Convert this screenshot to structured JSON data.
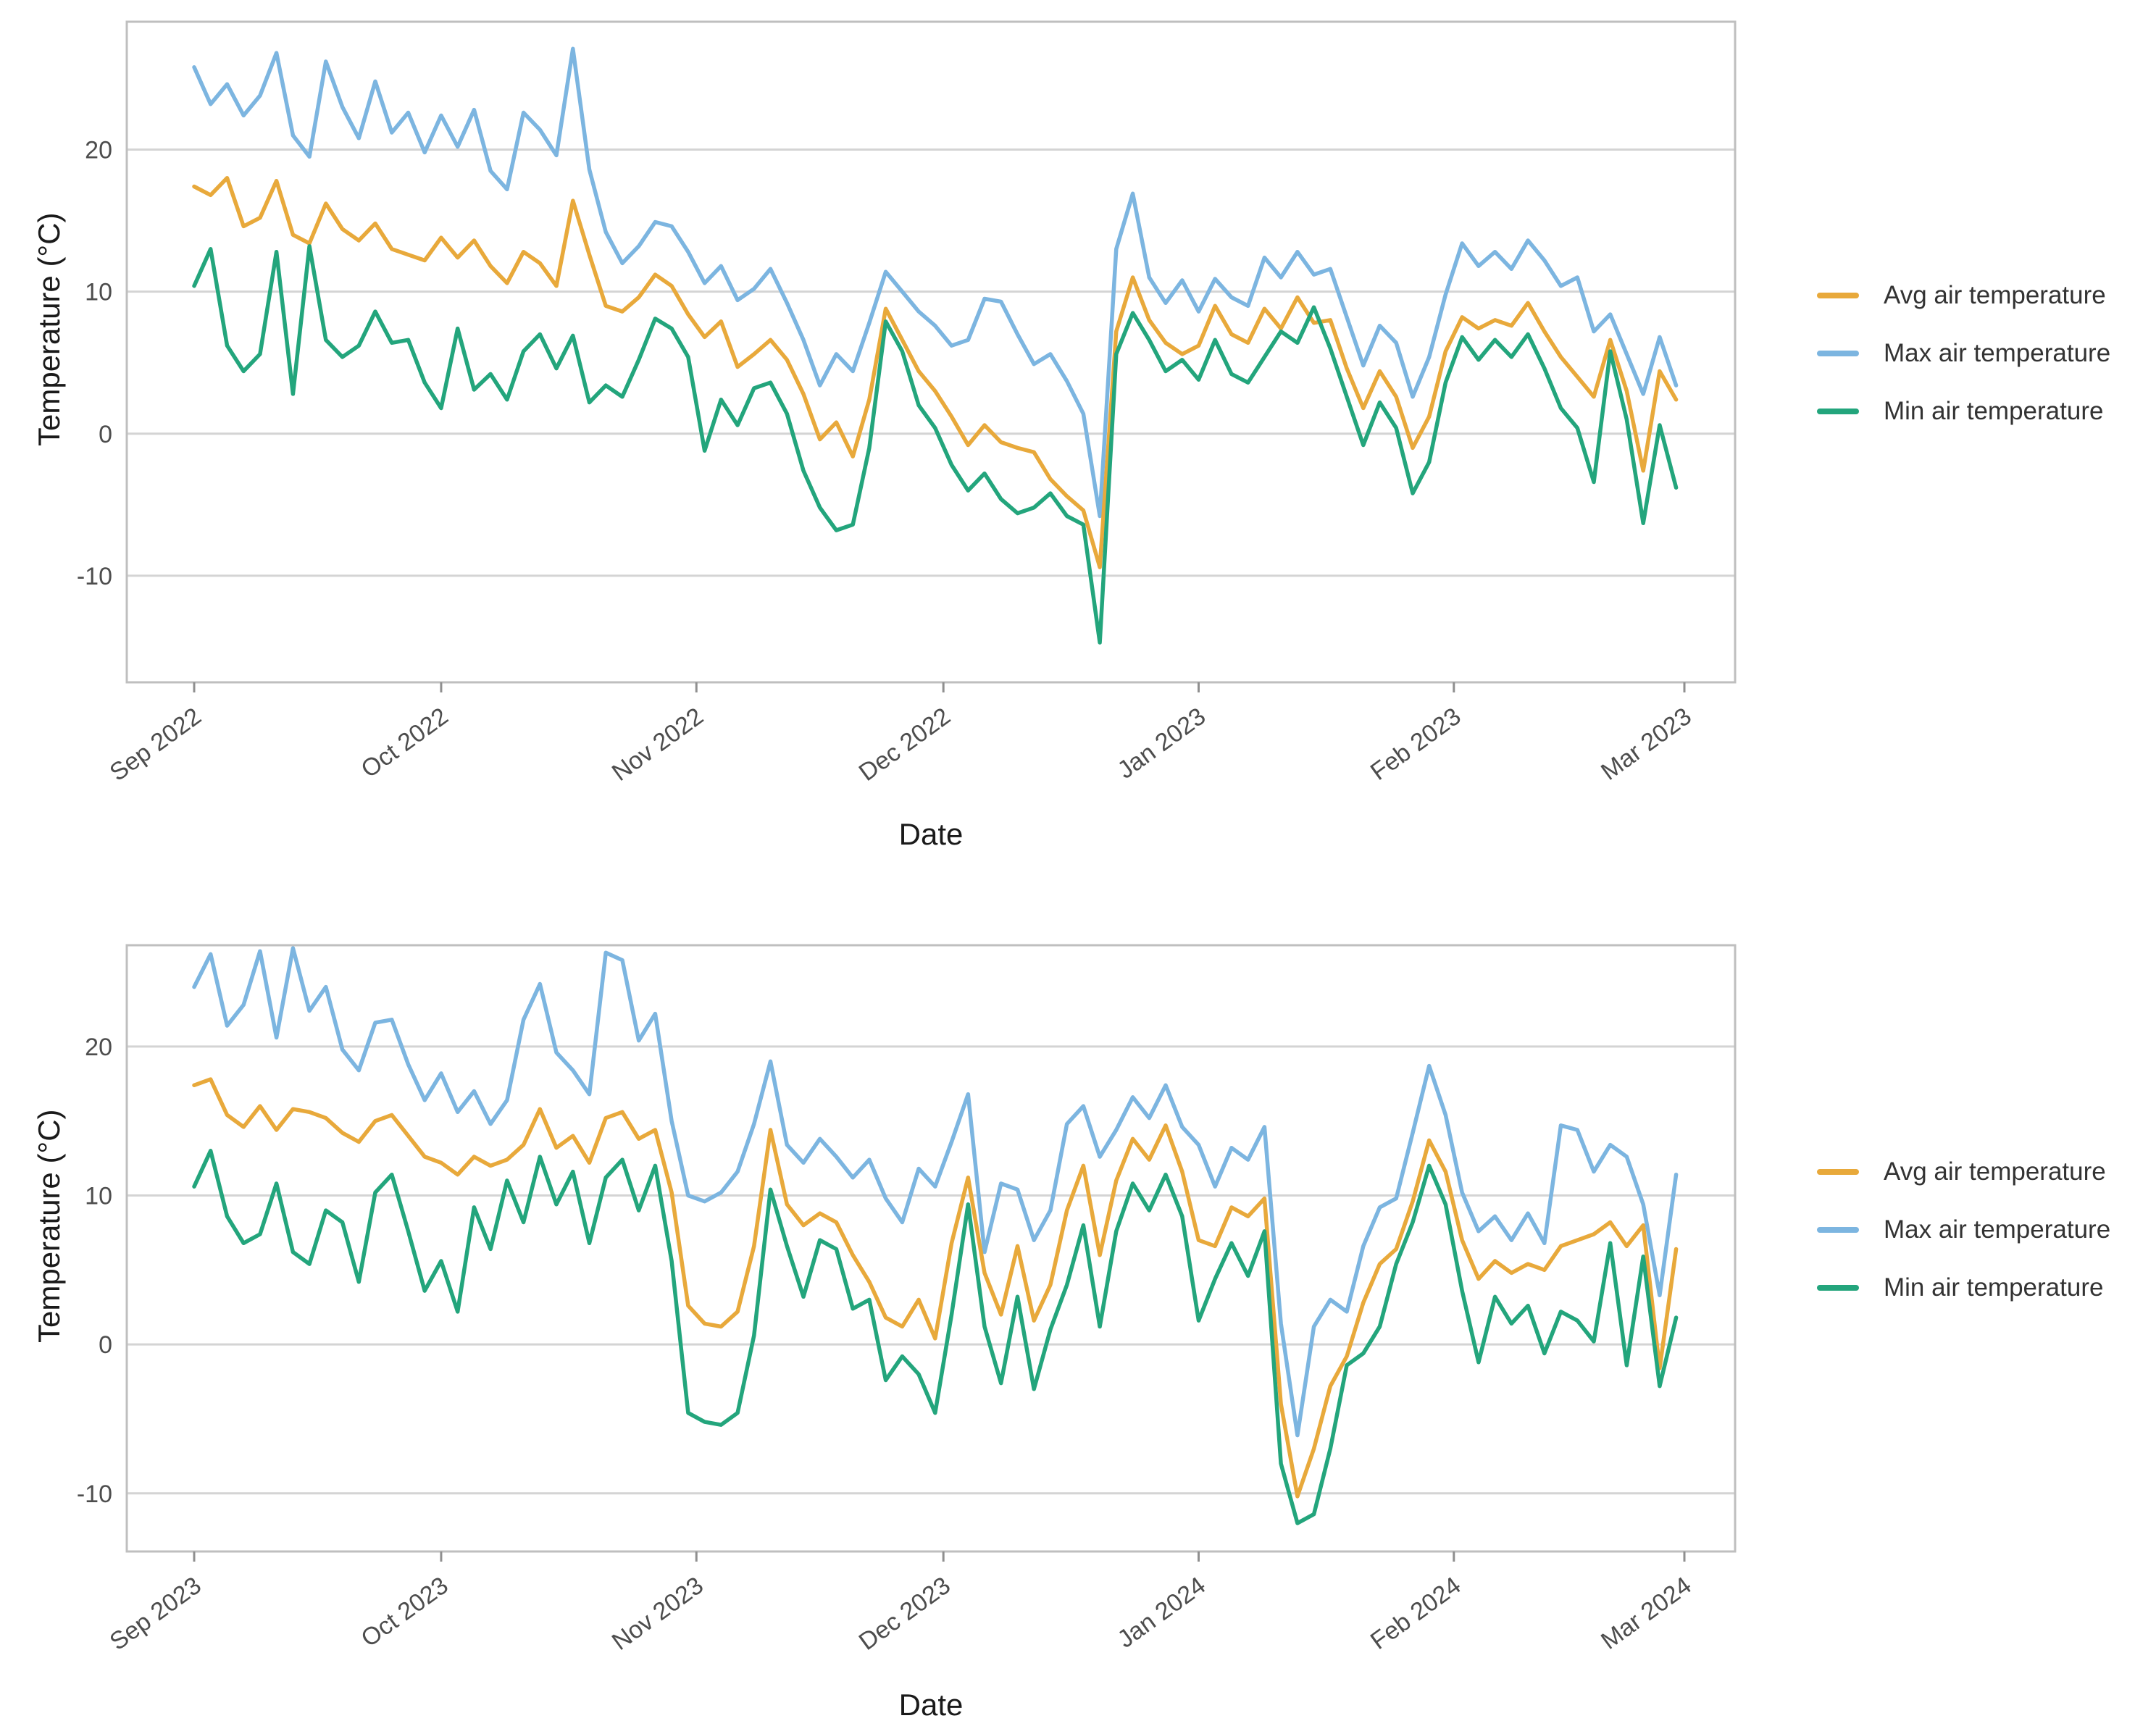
{
  "axis_style": {
    "grid_color": "#d4d4d4",
    "border_color": "#bfbfbf",
    "tick_color": "#8f8f8f",
    "tick_label_color": "#4d4d4d",
    "title_color": "#1a1a1a"
  },
  "legend": {
    "items": [
      {
        "id": "avg",
        "label": "Avg air temperature",
        "color": "#E8A93B"
      },
      {
        "id": "max",
        "label": "Max air temperature",
        "color": "#7CB5E0"
      },
      {
        "id": "min",
        "label": "Min air temperature",
        "color": "#23A57C"
      }
    ]
  },
  "chart_data": [
    {
      "type": "line",
      "xlabel": "Date",
      "ylabel": "Temperature (°C)",
      "x_tick_labels": [
        "Sep 2022",
        "Oct 2022",
        "Nov 2022",
        "Dec 2022",
        "Jan 2023",
        "Feb 2023",
        "Mar 2023"
      ],
      "x_tick_days": [
        0,
        30,
        61,
        91,
        122,
        153,
        181
      ],
      "x_days_step": 2,
      "yticks": [
        20,
        10,
        0,
        -10
      ],
      "ylim": [
        -17.5,
        29
      ],
      "grid": true,
      "legend_position": "right",
      "series": [
        {
          "name": "Avg air temperature",
          "color": "#E8A93B",
          "values": [
            17.4,
            16.8,
            18.0,
            14.6,
            15.2,
            17.8,
            14.0,
            13.4,
            16.2,
            14.4,
            13.6,
            14.8,
            13.0,
            12.6,
            12.2,
            13.8,
            12.4,
            13.6,
            11.8,
            10.6,
            12.8,
            12.0,
            10.4,
            16.4,
            12.6,
            9.0,
            8.6,
            9.6,
            11.2,
            10.4,
            8.4,
            6.8,
            7.9,
            4.7,
            5.6,
            6.6,
            5.2,
            2.8,
            -0.4,
            0.8,
            -1.6,
            2.4,
            8.8,
            6.6,
            4.4,
            3.0,
            1.2,
            -0.8,
            0.6,
            -0.6,
            -1.0,
            -1.3,
            -3.2,
            -4.4,
            -5.4,
            -9.4,
            7.2,
            11.0,
            8.0,
            6.4,
            5.6,
            6.2,
            9.0,
            7.0,
            6.4,
            8.8,
            7.4,
            9.6,
            7.8,
            8.0,
            4.6,
            1.8,
            4.4,
            2.6,
            -1.0,
            1.2,
            5.8,
            8.2,
            7.4,
            8.0,
            7.6,
            9.2,
            7.2,
            5.4,
            4.0,
            2.6,
            6.6,
            3.0,
            -2.6,
            4.4,
            2.4
          ]
        },
        {
          "name": "Max air temperature",
          "color": "#7CB5E0",
          "values": [
            25.8,
            23.2,
            24.6,
            22.4,
            23.8,
            26.8,
            21.0,
            19.5,
            26.2,
            23.0,
            20.8,
            24.8,
            21.2,
            22.6,
            19.8,
            22.4,
            20.2,
            22.8,
            18.5,
            17.2,
            22.6,
            21.4,
            19.6,
            27.1,
            18.6,
            14.2,
            12.0,
            13.2,
            14.9,
            14.6,
            12.8,
            10.6,
            11.8,
            9.4,
            10.2,
            11.6,
            9.2,
            6.6,
            3.4,
            5.6,
            4.4,
            7.8,
            11.4,
            10.0,
            8.6,
            7.6,
            6.2,
            6.6,
            9.5,
            9.3,
            7.0,
            4.9,
            5.6,
            3.7,
            1.4,
            -5.8,
            13.0,
            16.9,
            11.0,
            9.2,
            10.8,
            8.6,
            10.9,
            9.6,
            9.0,
            12.4,
            11.0,
            12.8,
            11.2,
            11.6,
            8.2,
            4.8,
            7.6,
            6.4,
            2.6,
            5.4,
            9.8,
            13.4,
            11.8,
            12.8,
            11.6,
            13.6,
            12.2,
            10.4,
            11.0,
            7.2,
            8.4,
            5.6,
            2.8,
            6.8,
            3.4
          ]
        },
        {
          "name": "Min air temperature",
          "color": "#23A57C",
          "values": [
            10.4,
            13.0,
            6.2,
            4.4,
            5.6,
            12.8,
            2.8,
            13.2,
            6.6,
            5.4,
            6.2,
            8.6,
            6.4,
            6.6,
            3.6,
            1.8,
            7.4,
            3.1,
            4.2,
            2.4,
            5.8,
            7.0,
            4.6,
            6.9,
            2.2,
            3.4,
            2.6,
            5.2,
            8.1,
            7.4,
            5.4,
            -1.2,
            2.4,
            0.6,
            3.2,
            3.6,
            1.4,
            -2.6,
            -5.2,
            -6.8,
            -6.4,
            -1.0,
            7.9,
            5.8,
            2.0,
            0.4,
            -2.2,
            -4.0,
            -2.8,
            -4.6,
            -5.6,
            -5.2,
            -4.2,
            -5.8,
            -6.4,
            -14.7,
            5.6,
            8.5,
            6.6,
            4.4,
            5.2,
            3.8,
            6.6,
            4.2,
            3.6,
            5.4,
            7.2,
            6.4,
            8.9,
            6.0,
            2.6,
            -0.8,
            2.2,
            0.4,
            -4.2,
            -2.0,
            3.6,
            6.8,
            5.2,
            6.6,
            5.4,
            7.0,
            4.6,
            1.8,
            0.4,
            -3.4,
            5.8,
            1.0,
            -6.3,
            0.6,
            -3.8
          ]
        }
      ]
    },
    {
      "type": "line",
      "xlabel": "Date",
      "ylabel": "Temperature (°C)",
      "x_tick_labels": [
        "Sep 2023",
        "Oct 2023",
        "Nov 2023",
        "Dec 2023",
        "Jan 2024",
        "Feb 2024",
        "Mar 2024"
      ],
      "x_tick_days": [
        0,
        30,
        61,
        91,
        122,
        153,
        181
      ],
      "x_days_step": 2,
      "yticks": [
        20,
        10,
        0,
        -10
      ],
      "ylim": [
        -13.9,
        26.8
      ],
      "grid": true,
      "legend_position": "right",
      "series": [
        {
          "name": "Avg air temperature",
          "color": "#E8A93B",
          "values": [
            17.4,
            17.8,
            15.4,
            14.6,
            16.0,
            14.4,
            15.8,
            15.6,
            15.2,
            14.2,
            13.6,
            15.0,
            15.4,
            14.0,
            12.6,
            12.2,
            11.4,
            12.6,
            12.0,
            12.4,
            13.4,
            15.8,
            13.2,
            14.0,
            12.2,
            15.2,
            15.6,
            13.8,
            14.4,
            10.2,
            2.6,
            1.4,
            1.2,
            2.2,
            6.6,
            14.4,
            9.4,
            8.0,
            8.8,
            8.2,
            6.0,
            4.2,
            1.8,
            1.2,
            3.0,
            0.4,
            6.8,
            11.2,
            4.8,
            2.0,
            6.6,
            1.6,
            4.0,
            9.0,
            12.0,
            6.0,
            11.0,
            13.8,
            12.4,
            14.7,
            11.6,
            7.0,
            6.6,
            9.2,
            8.6,
            9.8,
            -4.0,
            -10.2,
            -7.0,
            -2.8,
            -0.8,
            2.8,
            5.4,
            6.4,
            9.6,
            13.7,
            11.6,
            7.0,
            4.4,
            5.6,
            4.8,
            5.4,
            5.0,
            6.6,
            7.0,
            7.4,
            8.2,
            6.6,
            8.0,
            -1.6,
            6.4
          ]
        },
        {
          "name": "Max air temperature",
          "color": "#7CB5E0",
          "values": [
            24.0,
            26.2,
            21.4,
            22.8,
            26.4,
            20.6,
            26.6,
            22.4,
            24.0,
            19.8,
            18.4,
            21.6,
            21.8,
            18.8,
            16.4,
            18.2,
            15.6,
            17.0,
            14.8,
            16.4,
            21.8,
            24.2,
            19.6,
            18.4,
            16.8,
            26.3,
            25.8,
            20.4,
            22.2,
            15.0,
            10.0,
            9.6,
            10.2,
            11.6,
            14.8,
            19.0,
            13.4,
            12.2,
            13.8,
            12.6,
            11.2,
            12.4,
            9.8,
            8.2,
            11.8,
            10.6,
            13.6,
            16.8,
            6.2,
            10.8,
            10.4,
            7.0,
            9.0,
            14.8,
            16.0,
            12.6,
            14.4,
            16.6,
            15.2,
            17.4,
            14.6,
            13.4,
            10.6,
            13.2,
            12.4,
            14.6,
            1.4,
            -6.1,
            1.2,
            3.0,
            2.2,
            6.6,
            9.2,
            9.8,
            14.2,
            18.7,
            15.4,
            10.2,
            7.6,
            8.6,
            7.0,
            8.8,
            6.8,
            14.7,
            14.4,
            11.6,
            13.4,
            12.6,
            9.4,
            3.3,
            11.4
          ]
        },
        {
          "name": "Min air temperature",
          "color": "#23A57C",
          "values": [
            10.6,
            13.0,
            8.6,
            6.8,
            7.4,
            10.8,
            6.2,
            5.4,
            9.0,
            8.2,
            4.2,
            10.2,
            11.4,
            7.6,
            3.6,
            5.6,
            2.2,
            9.2,
            6.4,
            11.0,
            8.2,
            12.6,
            9.4,
            11.6,
            6.8,
            11.2,
            12.4,
            9.0,
            12.0,
            5.6,
            -4.6,
            -5.2,
            -5.4,
            -4.6,
            0.6,
            10.4,
            6.6,
            3.2,
            7.0,
            6.4,
            2.4,
            3.0,
            -2.4,
            -0.8,
            -2.0,
            -4.6,
            2.0,
            9.4,
            1.2,
            -2.6,
            3.2,
            -3.0,
            1.0,
            4.0,
            8.0,
            1.2,
            7.6,
            10.8,
            9.0,
            11.4,
            8.6,
            1.6,
            4.4,
            6.8,
            4.6,
            7.6,
            -8.0,
            -12.0,
            -11.4,
            -7.0,
            -1.4,
            -0.6,
            1.2,
            5.4,
            8.2,
            12.0,
            9.4,
            3.6,
            -1.2,
            3.2,
            1.4,
            2.6,
            -0.6,
            2.2,
            1.6,
            0.2,
            6.8,
            -1.4,
            5.9,
            -2.8,
            1.8
          ]
        }
      ]
    }
  ]
}
